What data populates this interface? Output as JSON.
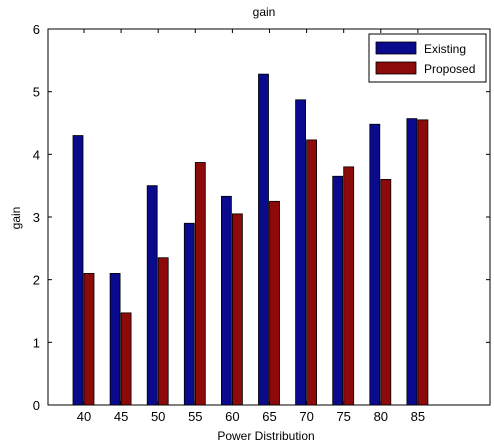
{
  "chart_data": {
    "type": "bar",
    "title": "gain",
    "xlabel": "Power Distribution",
    "ylabel": "gain",
    "categories": [
      "40",
      "45",
      "50",
      "55",
      "60",
      "65",
      "70",
      "75",
      "80",
      "85"
    ],
    "series": [
      {
        "name": "Existing",
        "color": "#0a0a8c",
        "values": [
          4.3,
          2.1,
          3.5,
          2.9,
          3.33,
          5.28,
          4.87,
          3.65,
          4.48,
          4.57
        ]
      },
      {
        "name": "Proposed",
        "color": "#8c0a0a",
        "values": [
          2.1,
          1.47,
          2.35,
          3.87,
          3.05,
          3.25,
          4.23,
          3.8,
          3.6,
          4.55
        ]
      }
    ],
    "ylim": [
      0,
      6
    ],
    "yticks": [
      "0",
      "1",
      "2",
      "3",
      "4",
      "5",
      "6"
    ],
    "grid": false,
    "legend_position": "top-right"
  }
}
